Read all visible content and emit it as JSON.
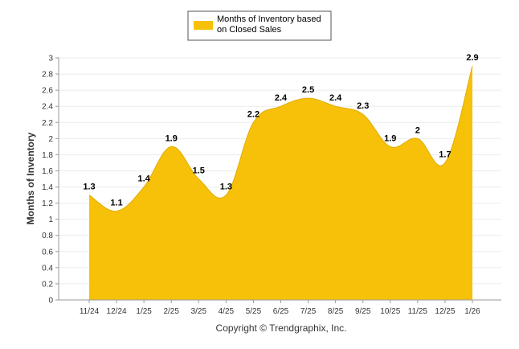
{
  "chart_data": {
    "type": "area",
    "title": "",
    "legend": "Months of Inventory based on Closed Sales",
    "legend_lines": [
      "Months of Inventory based",
      "on Closed Sales"
    ],
    "legend_position": "top-center",
    "xlabel": "",
    "ylabel": "Months of Inventory",
    "ylim": [
      0,
      3
    ],
    "yticks": [
      "0",
      "0.2",
      "0.4",
      "0.6",
      "0.8",
      "1",
      "1.2",
      "1.4",
      "1.6",
      "1.8",
      "2",
      "2.2",
      "2.4",
      "2.6",
      "2.8",
      "3"
    ],
    "grid": true,
    "categories": [
      "11/24",
      "12/24",
      "1/25",
      "2/25",
      "3/25",
      "4/25",
      "5/25",
      "6/25",
      "7/25",
      "8/25",
      "9/25",
      "10/25",
      "11/25",
      "12/25",
      "1/26"
    ],
    "series": [
      {
        "name": "Months of Inventory based on Closed Sales",
        "values": [
          1.3,
          1.1,
          1.4,
          1.9,
          1.5,
          1.3,
          2.2,
          2.4,
          2.5,
          2.4,
          2.3,
          1.9,
          2.0,
          1.7,
          2.9
        ],
        "data_labels": [
          "1.3",
          "1.1",
          "1.4",
          "1.9",
          "1.5",
          "1.3",
          "2.2",
          "2.4",
          "2.5",
          "2.4",
          "2.3",
          "1.9",
          "2",
          "1.7",
          "2.9"
        ],
        "color": "#f7c10a"
      }
    ]
  },
  "footer": "Copyright © Trendgraphix, Inc."
}
